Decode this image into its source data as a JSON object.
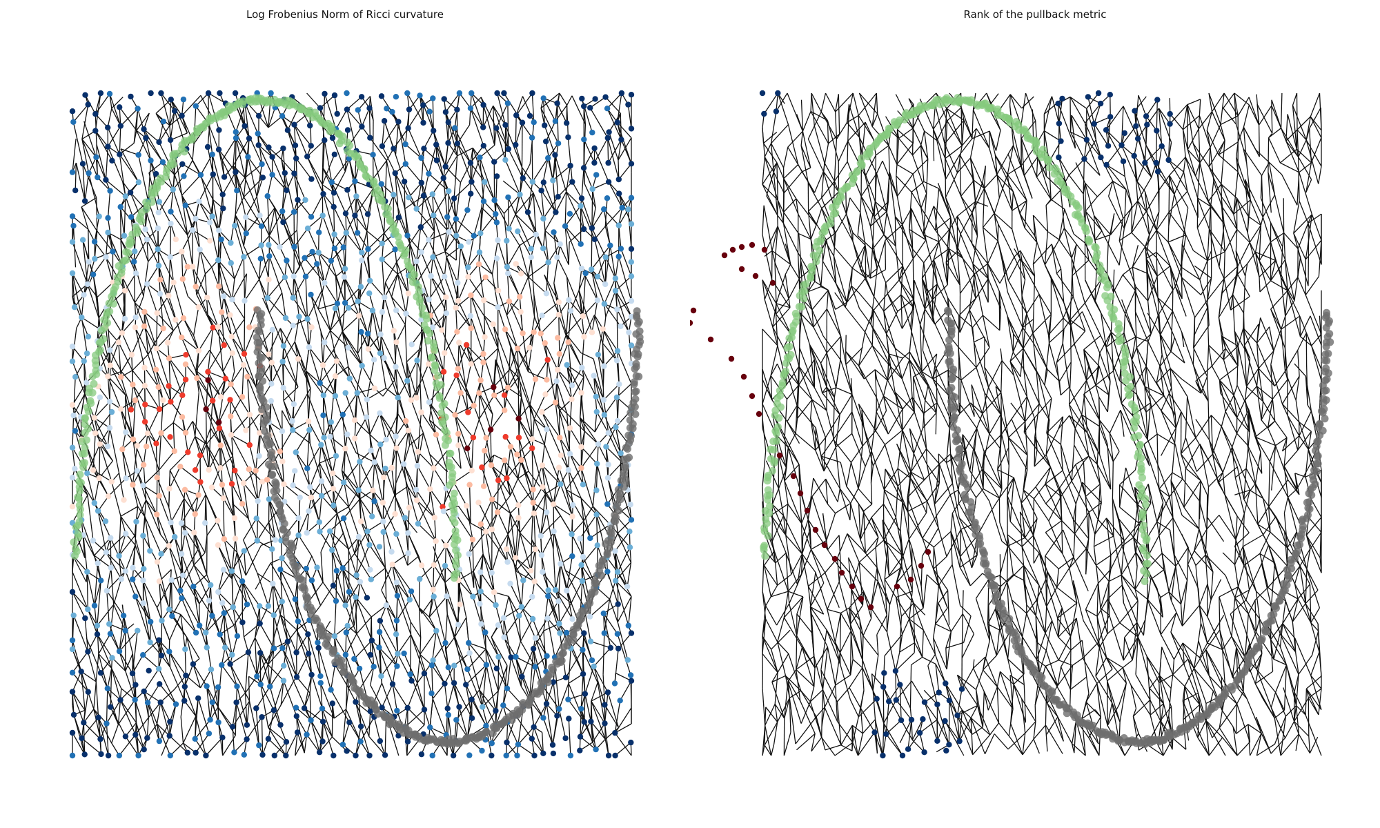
{
  "panels": [
    {
      "title": "Log Frobenius Norm of Ricci curvature",
      "node_color_scale": [
        "#08306b",
        "#2171b5",
        "#6baed6",
        "#c6dbef",
        "#fee0d2",
        "#fcbba1",
        "#ef3b2c",
        "#67000d"
      ],
      "show_edges": true
    },
    {
      "title": "Rank of the pullback metric",
      "node_color_scale": [
        "#08306b",
        "#67000d"
      ],
      "show_edges": true
    }
  ],
  "overlay": {
    "upper_arc_color": "#86c97e",
    "lower_arc_color": "#6e6e6e",
    "edge_color": "#111111"
  }
}
